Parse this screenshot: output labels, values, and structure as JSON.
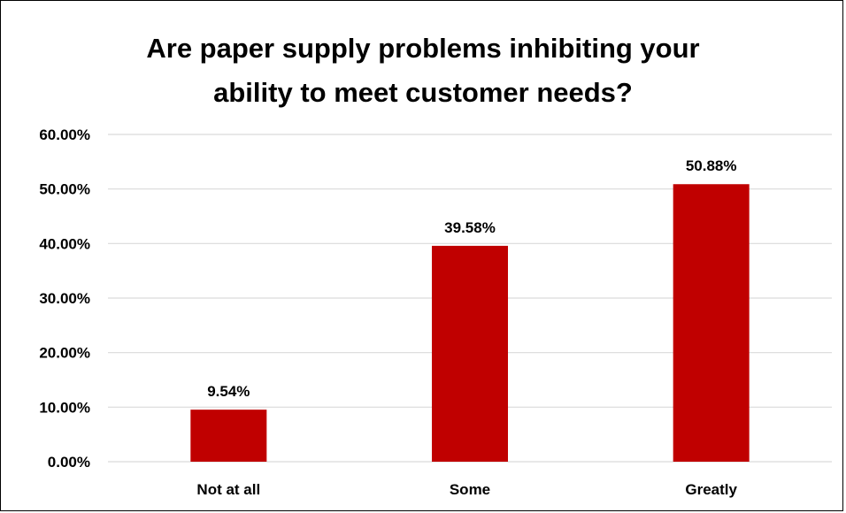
{
  "chart_data": {
    "type": "bar",
    "title": "Are paper supply problems inhibiting your ability to meet customer needs?",
    "title_lines": [
      "Are paper supply problems inhibiting your",
      "ability to meet customer needs?"
    ],
    "categories": [
      "Not at all",
      "Some",
      "Greatly"
    ],
    "values": [
      9.54,
      39.58,
      50.88
    ],
    "value_labels": [
      "9.54%",
      "39.58%",
      "50.88%"
    ],
    "ylim": [
      0,
      60
    ],
    "y_ticks": [
      0,
      10,
      20,
      30,
      40,
      50,
      60
    ],
    "y_tick_labels": [
      "0.00%",
      "10.00%",
      "20.00%",
      "30.00%",
      "40.00%",
      "50.00%",
      "60.00%"
    ],
    "xlabel": "",
    "ylabel": "",
    "grid": true,
    "legend": "none",
    "colors": {
      "bar": "#C00000",
      "grid": "#D9D9D9",
      "text": "#000000"
    }
  }
}
